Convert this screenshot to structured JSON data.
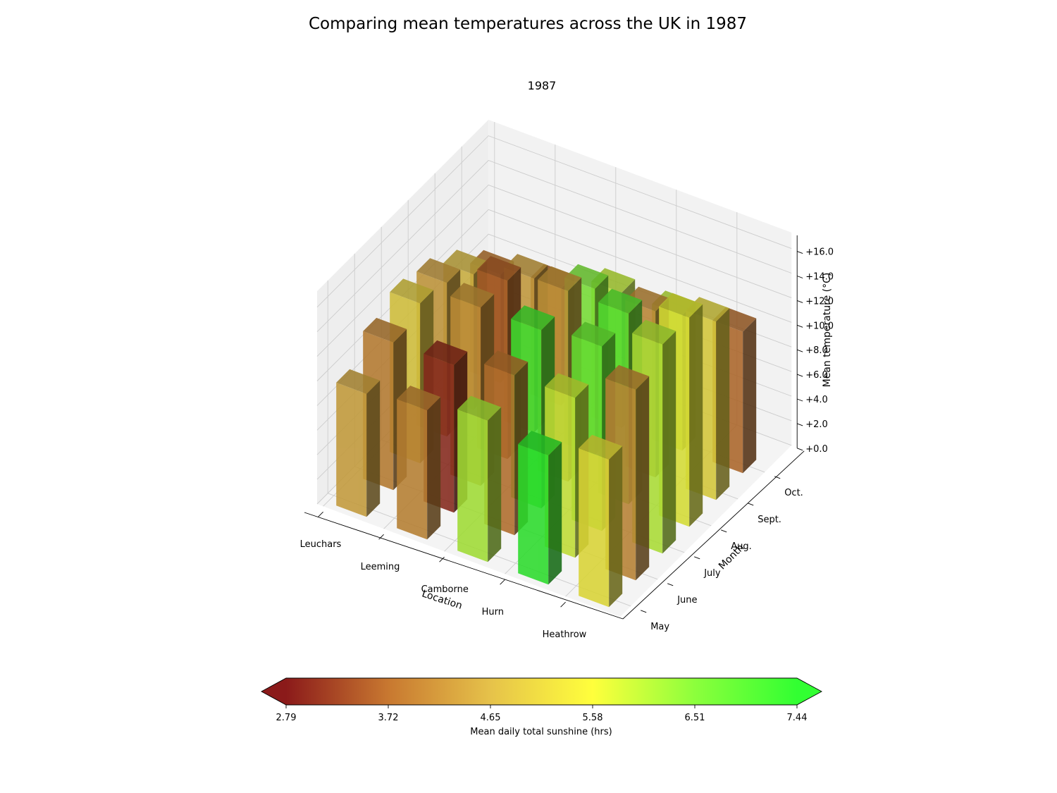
{
  "chart_data": {
    "type": "bar3d",
    "title": "Comparing mean temperatures across the UK in 1987",
    "subtitle": "1987",
    "xlabel": "Location",
    "ylabel": "Month",
    "zlabel": "Mean temperature (°C)",
    "x_categories": [
      "Leuchars",
      "Leeming",
      "Camborne",
      "Hurn",
      "Heathrow"
    ],
    "y_categories": [
      "May",
      "June",
      "July",
      "Aug.",
      "Sept.",
      "Oct."
    ],
    "z_ticks": [
      "+0.0",
      "+2.0",
      "+4.0",
      "+6.0",
      "+8.0",
      "+10.0",
      "+12.0",
      "+14.0",
      "+16.0"
    ],
    "zlim": [
      0,
      17
    ],
    "mean_temperature": [
      [
        10.0,
        12.0,
        13.0,
        12.5,
        11.0,
        8.8
      ],
      [
        10.5,
        12.0,
        14.5,
        14.5,
        12.5,
        9.5
      ],
      [
        11.5,
        13.0,
        14.5,
        15.5,
        13.5,
        11.0
      ],
      [
        10.5,
        13.0,
        15.0,
        15.5,
        13.5,
        11.0
      ],
      [
        12.0,
        15.5,
        17.0,
        17.0,
        14.5,
        11.5
      ]
    ],
    "mean_daily_sunshine": [
      [
        4.45,
        3.98,
        5.05,
        4.35,
        4.75,
        3.85
      ],
      [
        4.05,
        3.0,
        4.25,
        3.55,
        4.4,
        3.6
      ],
      [
        6.15,
        3.8,
        7.2,
        4.3,
        6.55,
        5.95
      ],
      [
        7.44,
        5.85,
        6.75,
        6.95,
        4.15,
        5.95
      ],
      [
        5.45,
        4.1,
        6.05,
        5.65,
        5.2,
        3.7
      ]
    ],
    "colorbar": {
      "label": "Mean daily total sunshine (hrs)",
      "ticks": [
        "2.79",
        "3.72",
        "4.65",
        "5.58",
        "6.51",
        "7.44"
      ],
      "range": [
        2.79,
        7.44
      ],
      "extend": "both",
      "colors": [
        "#8b1a1a",
        "#c87830",
        "#e6c24a",
        "#ffff3c",
        "#8cff3c",
        "#32ff32"
      ]
    },
    "grid": true
  }
}
